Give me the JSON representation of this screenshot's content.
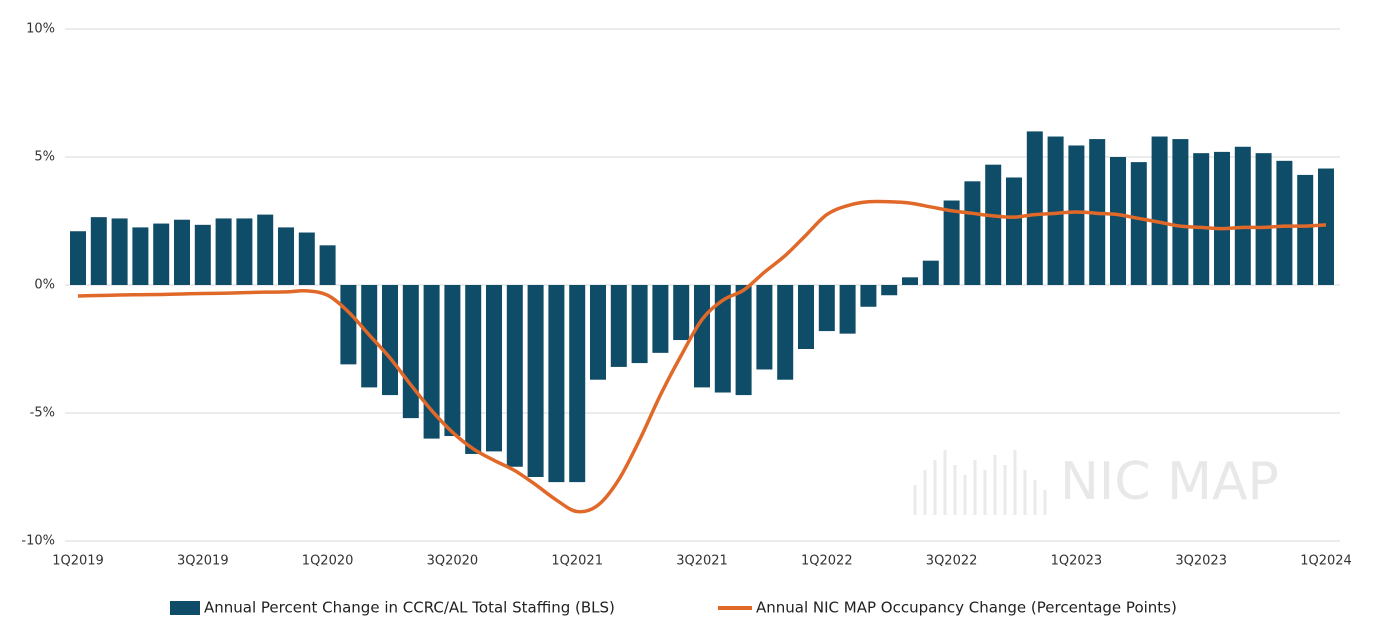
{
  "chart_data": {
    "type": "bar",
    "categories": [
      "1Q2019",
      null,
      null,
      null,
      null,
      null,
      "3Q2019",
      null,
      null,
      null,
      null,
      null,
      "1Q2020",
      null,
      null,
      null,
      null,
      null,
      "3Q2020",
      null,
      null,
      null,
      null,
      null,
      "1Q2021",
      null,
      null,
      null,
      null,
      null,
      "3Q2021",
      null,
      null,
      null,
      null,
      null,
      "1Q2022",
      null,
      null,
      null,
      null,
      null,
      "3Q2022",
      null,
      null,
      null,
      null,
      null,
      "1Q2023",
      null,
      null,
      null,
      null,
      null,
      "3Q2023",
      null,
      null,
      null,
      null,
      null,
      "1Q2024"
    ],
    "series": [
      {
        "name": "Annual Percent Change in CCRC/AL Total Staffing (BLS)",
        "type": "bar",
        "color": "#0f4c68",
        "values": [
          2.1,
          2.65,
          2.6,
          2.25,
          2.4,
          2.55,
          2.35,
          2.6,
          2.6,
          2.75,
          2.25,
          2.05,
          1.55,
          -3.1,
          -4.0,
          -4.3,
          -5.2,
          -6.0,
          -5.9,
          -6.6,
          -6.5,
          -7.1,
          -7.5,
          -7.7,
          -7.7,
          -3.7,
          -3.2,
          -3.05,
          -2.65,
          -2.15,
          -4.0,
          -4.2,
          -4.3,
          -3.3,
          -3.7,
          -2.5,
          -1.8,
          -1.9,
          -0.85,
          -0.4,
          0.3,
          0.95,
          3.3,
          4.05,
          4.7,
          4.2,
          6.0,
          5.8,
          5.45,
          5.7,
          5.0,
          4.8,
          5.8,
          5.7,
          5.15,
          5.2,
          5.4,
          5.15,
          4.85,
          4.3,
          4.55
        ]
      },
      {
        "name": "Annual NIC MAP Occupancy Change (Percentage Points)",
        "type": "line",
        "color": "#e0692a",
        "values": [
          -0.43,
          -0.41,
          -0.39,
          -0.38,
          -0.37,
          -0.35,
          -0.33,
          -0.32,
          -0.3,
          -0.28,
          -0.27,
          -0.23,
          -0.4,
          -1.05,
          -1.95,
          -2.85,
          -3.9,
          -4.9,
          -5.75,
          -6.4,
          -6.85,
          -7.25,
          -7.8,
          -8.4,
          -8.85,
          -8.6,
          -7.6,
          -6.05,
          -4.3,
          -2.75,
          -1.35,
          -0.6,
          -0.2,
          0.5,
          1.15,
          1.95,
          2.75,
          3.1,
          3.25,
          3.25,
          3.2,
          3.05,
          2.9,
          2.8,
          2.7,
          2.65,
          2.75,
          2.8,
          2.85,
          2.8,
          2.75,
          2.6,
          2.45,
          2.3,
          2.25,
          2.2,
          2.25,
          2.25,
          2.3,
          2.3,
          2.35
        ]
      }
    ],
    "ylim": [
      -10,
      10
    ],
    "yticks": [
      {
        "value": 10,
        "label": "10%"
      },
      {
        "value": 5,
        "label": "5%"
      },
      {
        "value": 0,
        "label": "0%"
      },
      {
        "value": -5,
        "label": "-5%"
      },
      {
        "value": -10,
        "label": "-10%"
      }
    ],
    "grid": true,
    "legend": "bottom",
    "watermark": "NIC MAP"
  }
}
